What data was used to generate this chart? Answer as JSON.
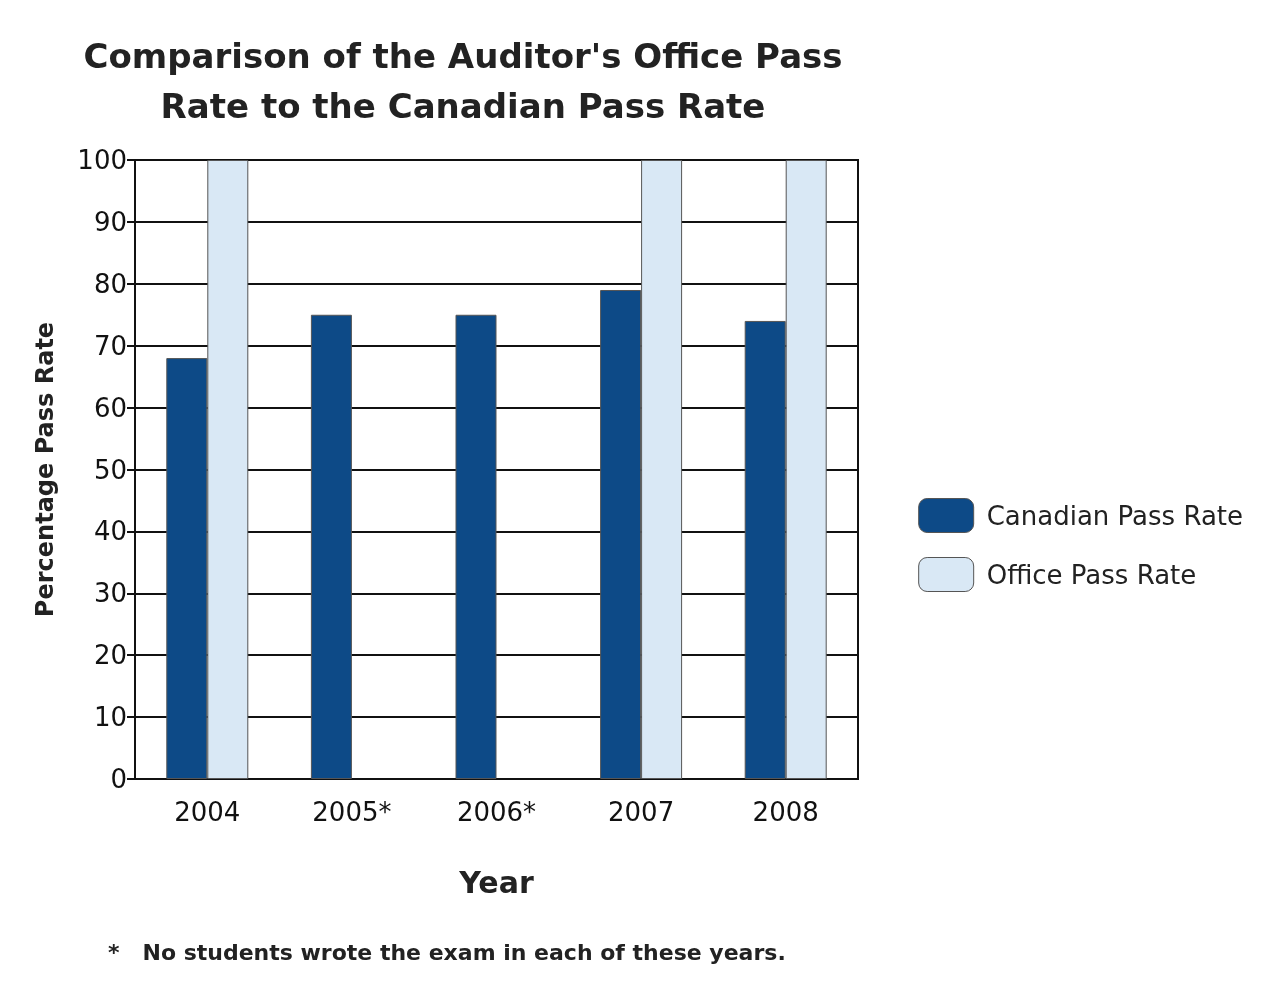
{
  "chart_data": {
    "type": "bar",
    "title": "Comparison of the Auditor's Office Pass\nRate to the Canadian Pass Rate",
    "xlabel": "Year",
    "ylabel": "Percentage Pass Rate",
    "categories": [
      "2004",
      "2005*",
      "2006*",
      "2007",
      "2008"
    ],
    "series": [
      {
        "name": "Canadian Pass Rate",
        "color": "#0d4a87",
        "values": [
          68,
          75,
          75,
          79,
          74
        ]
      },
      {
        "name": "Office Pass Rate",
        "color": "#d9e8f5",
        "values": [
          100,
          null,
          null,
          100,
          100
        ]
      }
    ],
    "ylim": [
      0,
      100
    ],
    "yticks": [
      0,
      10,
      20,
      30,
      40,
      50,
      60,
      70,
      80,
      90,
      100
    ],
    "grid": "y",
    "legend": "right",
    "annotations": [
      "*   No students wrote the exam in each of these years."
    ]
  }
}
